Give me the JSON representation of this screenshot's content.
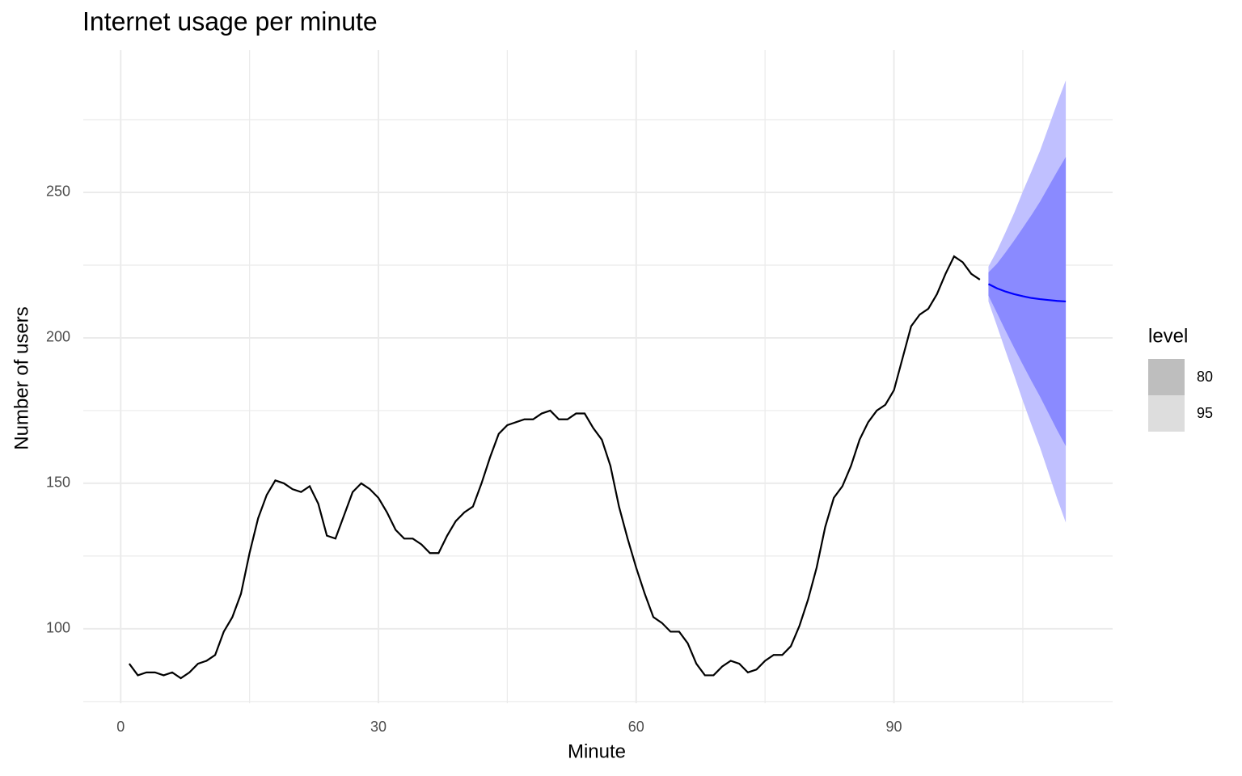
{
  "chart_data": {
    "type": "line",
    "title": "Internet usage per minute",
    "x_label": "Minute",
    "y_label": "Number of users",
    "xlim": [
      -4.35,
      115.45
    ],
    "ylim": [
      74.4,
      298.9
    ],
    "xticks": [
      0,
      30,
      60,
      90
    ],
    "yticks": [
      100,
      150,
      200,
      250
    ],
    "x_minor_ticks": [
      15,
      45,
      75,
      105
    ],
    "y_minor_ticks": [
      75,
      125,
      175,
      225,
      275
    ],
    "grid": true,
    "series": [
      {
        "color": "#000000",
        "x": [
          1,
          2,
          3,
          4,
          5,
          6,
          7,
          8,
          9,
          10,
          11,
          12,
          13,
          14,
          15,
          16,
          17,
          18,
          19,
          20,
          21,
          22,
          23,
          24,
          25,
          26,
          27,
          28,
          29,
          30,
          31,
          32,
          33,
          34,
          35,
          36,
          37,
          38,
          39,
          40,
          41,
          42,
          43,
          44,
          45,
          46,
          47,
          48,
          49,
          50,
          51,
          52,
          53,
          54,
          55,
          56,
          57,
          58,
          59,
          60,
          61,
          62,
          63,
          64,
          65,
          66,
          67,
          68,
          69,
          70,
          71,
          72,
          73,
          74,
          75,
          76,
          77,
          78,
          79,
          80,
          81,
          82,
          83,
          84,
          85,
          86,
          87,
          88,
          89,
          90,
          91,
          92,
          93,
          94,
          95,
          96,
          97,
          98,
          99,
          100
        ],
        "values": [
          88,
          84,
          85,
          85,
          84,
          85,
          83,
          85,
          88,
          89,
          91,
          99,
          104,
          112,
          126,
          138,
          146,
          151,
          150,
          148,
          147,
          149,
          143,
          132,
          131,
          139,
          147,
          150,
          148,
          145,
          140,
          134,
          131,
          131,
          129,
          126,
          126,
          132,
          137,
          140,
          142,
          150,
          159,
          167,
          170,
          171,
          172,
          172,
          174,
          175,
          172,
          172,
          174,
          174,
          169,
          165,
          156,
          142,
          131,
          121,
          112,
          104,
          102,
          99,
          99,
          95,
          88,
          84,
          84,
          87,
          89,
          88,
          85,
          86,
          89,
          91,
          91,
          94,
          101,
          110,
          121,
          135,
          145,
          149,
          156,
          165,
          171,
          175,
          177,
          182,
          193,
          204,
          208,
          210,
          215,
          222,
          228,
          226,
          222,
          220
        ]
      }
    ],
    "forecast": {
      "color": "#0000ff",
      "x": [
        101,
        102,
        103,
        104,
        105,
        106,
        107,
        108,
        109,
        110
      ],
      "mean": [
        218.5,
        217,
        215.9,
        215,
        214.3,
        213.7,
        213.3,
        213,
        212.7,
        212.5
      ],
      "bands": [
        {
          "level": 80,
          "fill": "#8a8aff",
          "key_color": "#bebebe",
          "lower": [
            214.5,
            208.5,
            202.4,
            196.5,
            190.8,
            185.2,
            179.8,
            174,
            168.2,
            162.8
          ],
          "upper": [
            222.5,
            225.5,
            229.4,
            233.5,
            237.8,
            242.2,
            246.8,
            252,
            257.2,
            262.2
          ]
        },
        {
          "level": 95,
          "fill": "#c0c0ff",
          "key_color": "#dddddd",
          "lower": [
            212.5,
            204,
            195.4,
            187,
            178.3,
            170.2,
            162.3,
            153.5,
            144.7,
            136.5
          ],
          "upper": [
            224.5,
            230,
            236.4,
            243,
            250.3,
            257.2,
            264.3,
            272.5,
            280.7,
            288.5
          ]
        }
      ]
    },
    "legend_title": "level"
  }
}
